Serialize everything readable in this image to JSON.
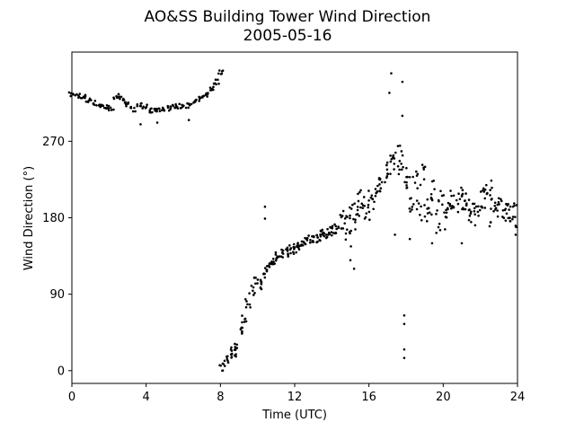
{
  "chart_data": {
    "type": "scatter",
    "title": "AO&SS Building Tower Wind Direction",
    "subtitle": "2005-05-16",
    "xlabel": "Time (UTC)",
    "ylabel": "Wind Direction (°)",
    "xlim": [
      0,
      24
    ],
    "ylim": [
      -15,
      375
    ],
    "xticks": [
      0,
      4,
      8,
      12,
      16,
      20,
      24
    ],
    "yticks": [
      0,
      90,
      180,
      270
    ],
    "grid": false,
    "legend": "none",
    "marker_color": "#000000",
    "series": [
      {
        "x": [
          0.0,
          0.3,
          0.6,
          0.9,
          1.2,
          1.5,
          1.8,
          2.1,
          2.4,
          2.7,
          3.0,
          3.3,
          3.6,
          3.9,
          4.2,
          4.5,
          4.8,
          5.1,
          5.4,
          5.7,
          6.0,
          6.3,
          6.6,
          6.9,
          7.2,
          7.5,
          7.8,
          8.0,
          8.1,
          8.3,
          8.5,
          8.7,
          8.9,
          9.1,
          9.3,
          9.5,
          9.7,
          9.9,
          10.1,
          10.3,
          10.5,
          10.7,
          10.9,
          11.1,
          11.3,
          11.5,
          11.7,
          11.9,
          12.1,
          12.3,
          12.5,
          12.7,
          12.9,
          13.1,
          13.3,
          13.5,
          13.7,
          13.9,
          14.1,
          14.3,
          14.5,
          14.7,
          14.9,
          15.1,
          15.3,
          15.5,
          15.7,
          15.9,
          16.1,
          16.3,
          16.5,
          16.7,
          16.9,
          17.1,
          17.3,
          17.5,
          17.7,
          17.9,
          18.1,
          18.3,
          18.5,
          18.7,
          18.9,
          19.1,
          19.3,
          19.5,
          19.7,
          19.9,
          20.1,
          20.3,
          20.5,
          20.7,
          20.9,
          21.1,
          21.3,
          21.5,
          21.7,
          21.9,
          22.1,
          22.3,
          22.5,
          22.7,
          22.9,
          23.1,
          23.3,
          23.5,
          23.7,
          23.9
        ],
        "y": [
          325,
          324,
          322,
          318,
          315,
          312,
          310,
          309,
          323,
          320,
          313,
          308,
          312,
          310,
          306,
          308,
          307,
          309,
          310,
          311,
          312,
          312,
          316,
          320,
          325,
          332,
          340,
          352,
          5,
          15,
          20,
          22,
          30,
          45,
          62,
          80,
          95,
          105,
          100,
          110,
          120,
          125,
          130,
          135,
          138,
          140,
          142,
          143,
          145,
          148,
          150,
          152,
          155,
          157,
          158,
          160,
          162,
          165,
          168,
          165,
          170,
          175,
          160,
          185,
          180,
          195,
          200,
          190,
          200,
          205,
          210,
          225,
          235,
          240,
          250,
          245,
          255,
          235,
          215,
          200,
          225,
          190,
          230,
          185,
          195,
          210,
          175,
          200,
          180,
          185,
          205,
          195,
          215,
          190,
          200,
          180,
          185,
          195,
          200,
          205,
          210,
          185,
          195,
          190,
          188,
          186,
          184,
          183
        ]
      },
      {
        "x": [
          2.4,
          3.7,
          4.6,
          6.3,
          8.1,
          10.4,
          10.4,
          13.7,
          15.0,
          15.2,
          15.5,
          17.1,
          17.2,
          17.4,
          17.8,
          17.8,
          17.9,
          17.9,
          17.9,
          17.9,
          18.2,
          19.4,
          21.0,
          22.5,
          23.9
        ],
        "y": [
          323,
          290,
          292,
          295,
          0,
          179,
          193,
          160,
          130,
          120,
          210,
          327,
          350,
          160,
          300,
          340,
          15,
          25,
          55,
          65,
          155,
          150,
          150,
          170,
          160
        ]
      }
    ]
  }
}
